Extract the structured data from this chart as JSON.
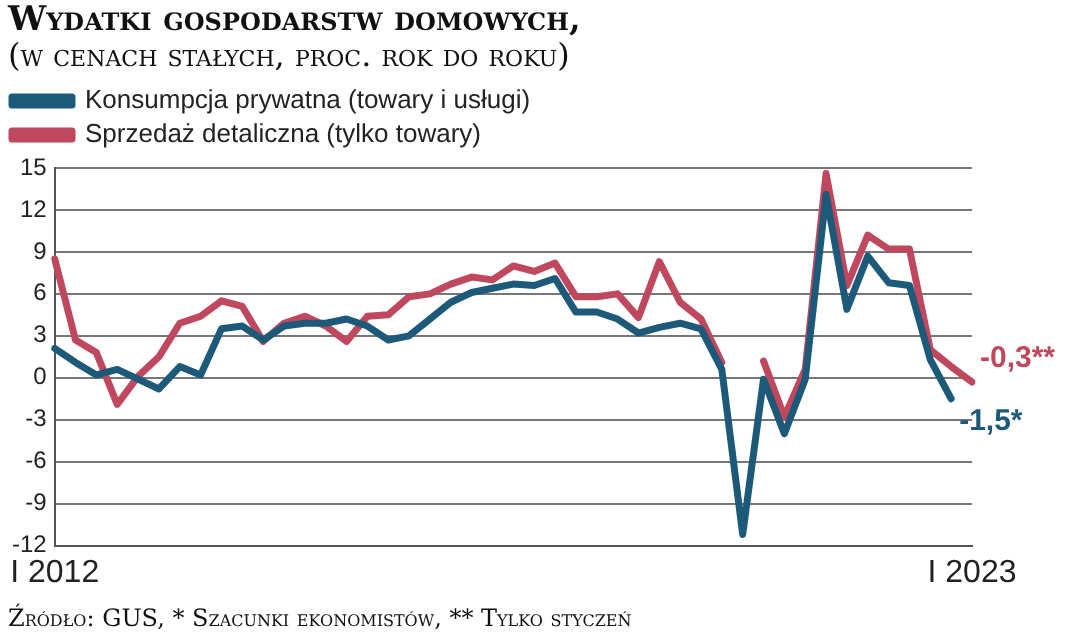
{
  "chart_data": {
    "type": "line",
    "title": "Wydatki gospodarstw domowych,",
    "subtitle": "(w cenach stałych, proc. rok do roku)",
    "categories": [
      "I 2012",
      null,
      null,
      null,
      null,
      null,
      null,
      null,
      null,
      null,
      null,
      null,
      null,
      null,
      null,
      null,
      null,
      null,
      null,
      null,
      null,
      null,
      null,
      null,
      null,
      null,
      null,
      null,
      null,
      null,
      null,
      null,
      null,
      null,
      null,
      null,
      null,
      null,
      null,
      null,
      null,
      null,
      null,
      null,
      "I 2023"
    ],
    "series": [
      {
        "name": "Konsumpcja prywatna (towary i usługi)",
        "color": "#1d5a7a",
        "values": [
          2.1,
          1.1,
          0.2,
          0.6,
          -0.1,
          -0.8,
          0.8,
          0.2,
          3.5,
          3.7,
          2.7,
          3.7,
          3.9,
          3.9,
          4.2,
          3.7,
          2.7,
          3.0,
          4.2,
          5.4,
          6.1,
          6.4,
          6.7,
          6.6,
          7.1,
          4.7,
          4.7,
          4.2,
          3.2,
          3.6,
          3.9,
          3.5,
          0.6,
          -11.2,
          -0.1,
          -4.0,
          -0.1,
          13.1,
          4.9,
          8.7,
          6.8,
          6.6,
          1.3,
          -1.5,
          null
        ],
        "value_labels": [
          null,
          null,
          null,
          null,
          null,
          null,
          null,
          null,
          null,
          null,
          null,
          null,
          null,
          null,
          null,
          null,
          null,
          null,
          null,
          null,
          null,
          null,
          null,
          null,
          null,
          null,
          null,
          null,
          null,
          null,
          null,
          null,
          null,
          null,
          null,
          null,
          null,
          null,
          null,
          null,
          null,
          null,
          null,
          "-1,5*",
          null
        ]
      },
      {
        "name": "Sprzedaż detaliczna (tylko towary)",
        "color": "#c0485e",
        "values": [
          8.5,
          2.7,
          1.8,
          -1.9,
          0.1,
          1.5,
          3.9,
          4.4,
          5.5,
          5.1,
          2.6,
          3.9,
          4.4,
          3.7,
          2.6,
          4.4,
          4.5,
          5.8,
          6.0,
          6.7,
          7.2,
          7.0,
          8.0,
          7.6,
          8.2,
          5.8,
          5.8,
          6.0,
          4.3,
          8.3,
          5.4,
          4.2,
          1.1,
          null,
          1.2,
          -2.8,
          0.6,
          14.6,
          6.6,
          10.2,
          9.2,
          9.2,
          2.0,
          0.8,
          -0.3
        ],
        "value_labels": [
          null,
          null,
          null,
          null,
          null,
          null,
          null,
          null,
          null,
          null,
          null,
          null,
          null,
          null,
          null,
          null,
          null,
          null,
          null,
          null,
          null,
          null,
          null,
          null,
          null,
          null,
          null,
          null,
          null,
          null,
          null,
          null,
          null,
          null,
          null,
          null,
          null,
          null,
          null,
          null,
          null,
          null,
          null,
          null,
          "-0,3**"
        ]
      }
    ],
    "ylim": [
      -12,
      15
    ],
    "yticks": [
      -12,
      -9,
      -6,
      -3,
      0,
      3,
      6,
      9,
      12,
      15
    ],
    "grid": "y",
    "legend": "top left",
    "marker": "none",
    "line_style": "solid",
    "annotations": [
      "Źródło: GUS, * Szacunki ekonomistów, ** Tylko styczeń"
    ]
  }
}
